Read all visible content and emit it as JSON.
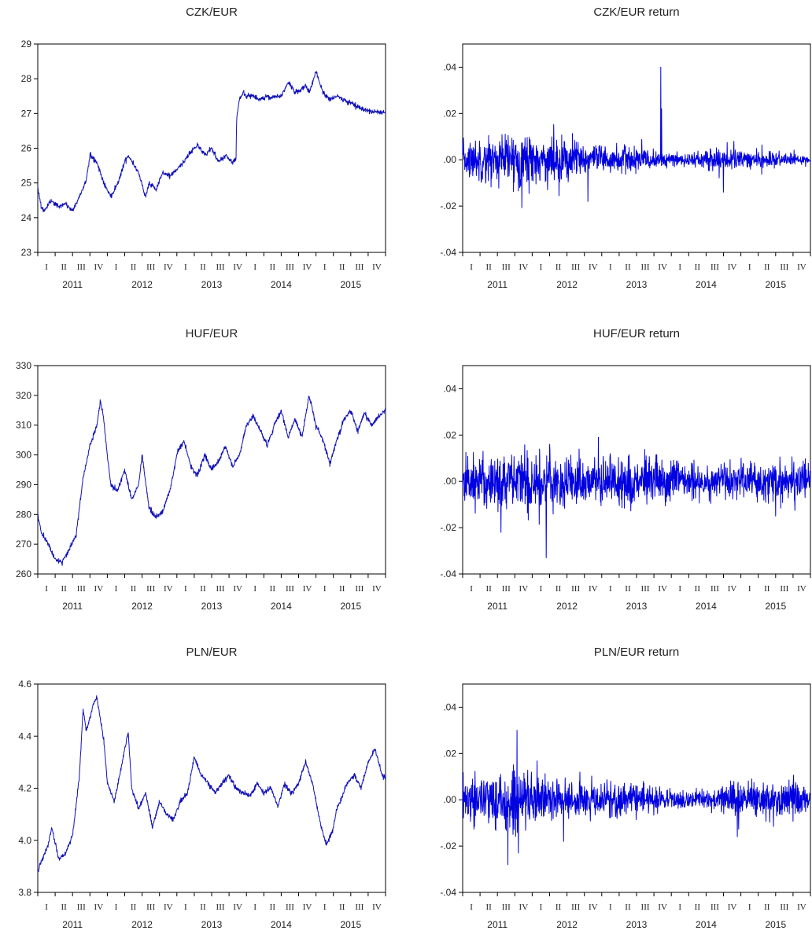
{
  "chart_data": [
    {
      "type": "line",
      "title": "CZK/EUR",
      "ylim": [
        23,
        29
      ],
      "yticks": [
        "23",
        "24",
        "25",
        "26",
        "27",
        "28",
        "29"
      ],
      "xlim": [
        2011.0,
        2016.0
      ],
      "quarter_labels": [
        "I",
        "II",
        "III",
        "IV",
        "I",
        "II",
        "III",
        "IV",
        "I",
        "II",
        "III",
        "IV",
        "I",
        "II",
        "III",
        "IV",
        "I",
        "II",
        "III",
        "IV"
      ],
      "year_labels": [
        "2011",
        "2012",
        "2013",
        "2014",
        "2015"
      ],
      "grid": false,
      "series": [
        {
          "color": "#1010b8",
          "x": [
            2011.0,
            2011.05,
            2011.1,
            2011.2,
            2011.3,
            2011.4,
            2011.5,
            2011.6,
            2011.7,
            2011.75,
            2011.85,
            2011.95,
            2012.05,
            2012.15,
            2012.25,
            2012.3,
            2012.45,
            2012.55,
            2012.6,
            2012.7,
            2012.8,
            2012.9,
            2013.0,
            2013.1,
            2013.2,
            2013.3,
            2013.4,
            2013.5,
            2013.6,
            2013.7,
            2013.8,
            2013.85,
            2013.86,
            2013.9,
            2013.95,
            2014.0,
            2014.1,
            2014.2,
            2014.3,
            2014.35,
            2014.4,
            2014.5,
            2014.6,
            2014.7,
            2014.8,
            2014.85,
            2014.9,
            2015.0,
            2015.1,
            2015.2,
            2015.3,
            2015.4,
            2015.5,
            2015.6,
            2015.7,
            2015.8,
            2015.9,
            2016.0
          ],
          "y": [
            24.9,
            24.3,
            24.2,
            24.5,
            24.3,
            24.4,
            24.2,
            24.6,
            25.1,
            25.8,
            25.6,
            25.0,
            24.6,
            25.0,
            25.6,
            25.8,
            25.3,
            24.6,
            25.0,
            24.8,
            25.3,
            25.2,
            25.4,
            25.6,
            25.9,
            26.1,
            25.8,
            26.0,
            25.6,
            25.8,
            25.6,
            25.7,
            26.9,
            27.4,
            27.6,
            27.5,
            27.5,
            27.4,
            27.5,
            27.45,
            27.5,
            27.5,
            27.9,
            27.6,
            27.7,
            27.8,
            27.6,
            28.2,
            27.6,
            27.4,
            27.5,
            27.4,
            27.3,
            27.2,
            27.1,
            27.05,
            27.02,
            27.02
          ]
        }
      ]
    },
    {
      "type": "line",
      "title": "CZK/EUR return",
      "ylim": [
        -0.04,
        0.05
      ],
      "yticks": [
        "-.04",
        "-.02",
        ".00",
        ".02",
        ".04"
      ],
      "xlim": [
        2011.0,
        2016.0
      ],
      "quarter_labels": [
        "I",
        "II",
        "III",
        "IV",
        "I",
        "II",
        "III",
        "IV",
        "I",
        "II",
        "III",
        "IV",
        "I",
        "II",
        "III",
        "IV",
        "I",
        "II",
        "III",
        "IV"
      ],
      "year_labels": [
        "2011",
        "2012",
        "2013",
        "2014",
        "2015"
      ],
      "grid": false,
      "volatility_profile": [
        [
          2011.0,
          0.004
        ],
        [
          2011.5,
          0.005
        ],
        [
          2011.8,
          0.006
        ],
        [
          2012.1,
          0.005
        ],
        [
          2012.5,
          0.005
        ],
        [
          2012.9,
          0.003
        ],
        [
          2013.5,
          0.003
        ],
        [
          2013.85,
          0.0015
        ],
        [
          2014.3,
          0.0013
        ],
        [
          2014.6,
          0.003
        ],
        [
          2015.0,
          0.002
        ],
        [
          2015.5,
          0.0015
        ],
        [
          2016.0,
          0.0008
        ]
      ],
      "spikes": [
        {
          "x": 2012.8,
          "y": -0.018
        },
        {
          "x": 2013.85,
          "y": 0.04
        },
        {
          "x": 2013.86,
          "y": 0.022
        },
        {
          "x": 2014.75,
          "y": -0.014
        },
        {
          "x": 2014.9,
          "y": 0.008
        }
      ],
      "series": [
        {
          "color": "#0000e0"
        }
      ]
    },
    {
      "type": "line",
      "title": "HUF/EUR",
      "ylim": [
        260,
        330
      ],
      "yticks": [
        "260",
        "270",
        "280",
        "290",
        "300",
        "310",
        "320",
        "330"
      ],
      "xlim": [
        2011.0,
        2016.0
      ],
      "quarter_labels": [
        "I",
        "II",
        "III",
        "IV",
        "I",
        "II",
        "III",
        "IV",
        "I",
        "II",
        "III",
        "IV",
        "I",
        "II",
        "III",
        "IV",
        "I",
        "II",
        "III",
        "IV"
      ],
      "year_labels": [
        "2011",
        "2012",
        "2013",
        "2014",
        "2015"
      ],
      "grid": false,
      "series": [
        {
          "color": "#1010b8",
          "x": [
            2011.0,
            2011.05,
            2011.15,
            2011.25,
            2011.35,
            2011.45,
            2011.55,
            2011.65,
            2011.75,
            2011.85,
            2011.9,
            2011.95,
            2012.0,
            2012.05,
            2012.15,
            2012.25,
            2012.35,
            2012.45,
            2012.5,
            2012.6,
            2012.7,
            2012.8,
            2012.85,
            2012.9,
            2013.0,
            2013.1,
            2013.2,
            2013.3,
            2013.4,
            2013.5,
            2013.6,
            2013.7,
            2013.8,
            2013.9,
            2014.0,
            2014.1,
            2014.2,
            2014.3,
            2014.4,
            2014.5,
            2014.6,
            2014.7,
            2014.8,
            2014.9,
            2015.0,
            2015.1,
            2015.2,
            2015.3,
            2015.4,
            2015.5,
            2015.6,
            2015.7,
            2015.8,
            2015.9,
            2016.0
          ],
          "y": [
            280,
            274,
            270,
            265,
            264,
            268,
            273,
            292,
            303,
            310,
            318,
            312,
            300,
            290,
            288,
            295,
            285,
            290,
            300,
            282,
            279,
            281,
            285,
            288,
            300,
            305,
            296,
            293,
            300,
            295,
            298,
            303,
            296,
            300,
            310,
            313,
            308,
            303,
            310,
            315,
            306,
            312,
            306,
            320,
            310,
            305,
            297,
            305,
            312,
            315,
            308,
            314,
            310,
            313,
            315
          ]
        }
      ]
    },
    {
      "type": "line",
      "title": "HUF/EUR return",
      "ylim": [
        -0.04,
        0.05
      ],
      "yticks": [
        "-.04",
        "-.02",
        ".00",
        ".02",
        ".04"
      ],
      "xlim": [
        2011.0,
        2016.0
      ],
      "quarter_labels": [
        "I",
        "II",
        "III",
        "IV",
        "I",
        "II",
        "III",
        "IV",
        "I",
        "II",
        "III",
        "IV",
        "I",
        "II",
        "III",
        "IV",
        "I",
        "II",
        "III",
        "IV"
      ],
      "year_labels": [
        "2011",
        "2012",
        "2013",
        "2014",
        "2015"
      ],
      "grid": false,
      "volatility_profile": [
        [
          2011.0,
          0.005
        ],
        [
          2011.5,
          0.006
        ],
        [
          2011.9,
          0.007
        ],
        [
          2012.3,
          0.006
        ],
        [
          2012.8,
          0.005
        ],
        [
          2013.3,
          0.006
        ],
        [
          2013.8,
          0.005
        ],
        [
          2014.3,
          0.004
        ],
        [
          2014.8,
          0.004
        ],
        [
          2015.3,
          0.004
        ],
        [
          2016.0,
          0.004
        ]
      ],
      "spikes": [
        {
          "x": 2011.55,
          "y": -0.022
        },
        {
          "x": 2012.2,
          "y": -0.033
        },
        {
          "x": 2012.25,
          "y": 0.016
        },
        {
          "x": 2012.95,
          "y": 0.019
        },
        {
          "x": 2015.5,
          "y": -0.015
        }
      ],
      "series": [
        {
          "color": "#0000e0"
        }
      ]
    },
    {
      "type": "line",
      "title": "PLN/EUR",
      "ylim": [
        3.8,
        4.6
      ],
      "yticks": [
        "3.8",
        "4.0",
        "4.2",
        "4.4",
        "4.6"
      ],
      "xlim": [
        2011.0,
        2016.0
      ],
      "quarter_labels": [
        "I",
        "II",
        "III",
        "IV",
        "I",
        "II",
        "III",
        "IV",
        "I",
        "II",
        "III",
        "IV",
        "I",
        "II",
        "III",
        "IV",
        "I",
        "II",
        "III",
        "IV"
      ],
      "year_labels": [
        "2011",
        "2012",
        "2013",
        "2014",
        "2015"
      ],
      "grid": false,
      "series": [
        {
          "color": "#1010b8",
          "x": [
            2011.0,
            2011.05,
            2011.15,
            2011.2,
            2011.3,
            2011.4,
            2011.5,
            2011.6,
            2011.65,
            2011.7,
            2011.8,
            2011.85,
            2011.95,
            2012.0,
            2012.1,
            2012.2,
            2012.3,
            2012.35,
            2012.45,
            2012.55,
            2012.65,
            2012.75,
            2012.85,
            2012.95,
            2013.05,
            2013.15,
            2013.25,
            2013.35,
            2013.45,
            2013.55,
            2013.65,
            2013.75,
            2013.85,
            2013.95,
            2014.05,
            2014.15,
            2014.25,
            2014.35,
            2014.45,
            2014.55,
            2014.65,
            2014.75,
            2014.85,
            2014.95,
            2015.05,
            2015.15,
            2015.25,
            2015.3,
            2015.35,
            2015.45,
            2015.55,
            2015.65,
            2015.75,
            2015.85,
            2015.95,
            2016.0
          ],
          "y": [
            3.88,
            3.92,
            3.98,
            4.05,
            3.93,
            3.95,
            4.02,
            4.25,
            4.5,
            4.42,
            4.52,
            4.55,
            4.38,
            4.22,
            4.15,
            4.28,
            4.42,
            4.2,
            4.12,
            4.18,
            4.05,
            4.15,
            4.1,
            4.08,
            4.15,
            4.18,
            4.32,
            4.25,
            4.22,
            4.18,
            4.22,
            4.25,
            4.2,
            4.18,
            4.17,
            4.22,
            4.18,
            4.2,
            4.13,
            4.22,
            4.18,
            4.22,
            4.3,
            4.22,
            4.08,
            3.98,
            4.05,
            4.12,
            4.15,
            4.22,
            4.25,
            4.2,
            4.3,
            4.35,
            4.25,
            4.24
          ]
        }
      ]
    },
    {
      "type": "line",
      "title": "PLN/EUR return",
      "ylim": [
        -0.04,
        0.05
      ],
      "yticks": [
        "-.04",
        "-.02",
        ".00",
        ".02",
        ".04"
      ],
      "xlim": [
        2011.0,
        2016.0
      ],
      "quarter_labels": [
        "I",
        "II",
        "III",
        "IV",
        "I",
        "II",
        "III",
        "IV",
        "I",
        "II",
        "III",
        "IV",
        "I",
        "II",
        "III",
        "IV",
        "I",
        "II",
        "III",
        "IV"
      ],
      "year_labels": [
        "2011",
        "2012",
        "2013",
        "2014",
        "2015"
      ],
      "grid": false,
      "volatility_profile": [
        [
          2011.0,
          0.005
        ],
        [
          2011.5,
          0.006
        ],
        [
          2011.8,
          0.008
        ],
        [
          2012.1,
          0.005
        ],
        [
          2012.5,
          0.004
        ],
        [
          2013.0,
          0.004
        ],
        [
          2013.5,
          0.0035
        ],
        [
          2014.0,
          0.002
        ],
        [
          2014.5,
          0.002
        ],
        [
          2014.9,
          0.0035
        ],
        [
          2015.5,
          0.004
        ],
        [
          2016.0,
          0.004
        ]
      ],
      "spikes": [
        {
          "x": 2011.65,
          "y": -0.028
        },
        {
          "x": 2011.78,
          "y": 0.03
        },
        {
          "x": 2011.8,
          "y": -0.023
        },
        {
          "x": 2012.45,
          "y": -0.018
        },
        {
          "x": 2014.95,
          "y": -0.016
        },
        {
          "x": 2014.9,
          "y": 0.008
        }
      ],
      "series": [
        {
          "color": "#0000e0"
        }
      ]
    }
  ]
}
